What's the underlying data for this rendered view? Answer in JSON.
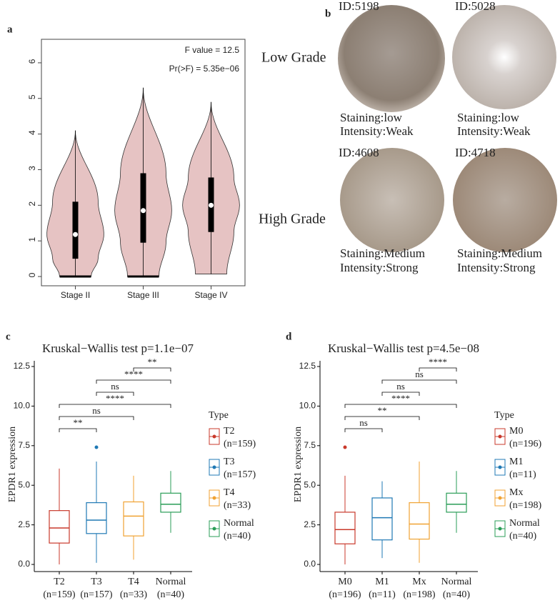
{
  "panel_labels": [
    "a",
    "b",
    "c",
    "d"
  ],
  "tissue": {
    "row_labels": [
      "Low Grade",
      "High Grade"
    ],
    "samples": [
      {
        "id": "ID:5198",
        "staining": "Staining:low",
        "intensity": "Intensity:Weak"
      },
      {
        "id": "ID:5028",
        "staining": "Staining:low",
        "intensity": "Intensity:Weak"
      },
      {
        "id": "ID:4608",
        "staining": "Staining:Medium",
        "intensity": "Intensity:Strong"
      },
      {
        "id": "ID:4718",
        "staining": "Staining:Medium",
        "intensity": "Intensity:Strong"
      }
    ]
  },
  "chart_data": [
    {
      "type": "violin",
      "categories": [
        "Stage II",
        "Stage III",
        "Stage IV"
      ],
      "stats": {
        "min": [
          0,
          0,
          0.07
        ],
        "q1": [
          0.5,
          0.95,
          1.25
        ],
        "median": [
          1.18,
          1.85,
          2.0
        ],
        "q3": [
          2.1,
          2.9,
          2.78
        ],
        "max": [
          4.1,
          5.3,
          4.9
        ]
      },
      "color": "#e6c3c3",
      "annotations": [
        "F value = 12.5",
        "Pr(>F) = 5.35e−06"
      ],
      "ylim": [
        -0.26,
        6.66
      ],
      "yticks": [
        0,
        1,
        2,
        3,
        4,
        5,
        6
      ]
    },
    {
      "type": "box",
      "title": "Kruskal−Wallis test p=1.1e−07",
      "y_label": "EPDR1 expression",
      "legend_title": "Type",
      "categories": [
        "T2",
        "T3",
        "T4",
        "Normal"
      ],
      "n_labels": [
        "(n=159)",
        "(n=157)",
        "(n=33)",
        "(n=40)"
      ],
      "colors": [
        "#c9392b",
        "#1f78b4",
        "#f0a232",
        "#2a9d57"
      ],
      "stats": {
        "min": [
          0,
          0.1,
          0.3,
          2.0
        ],
        "q1": [
          1.35,
          1.95,
          1.8,
          3.3
        ],
        "median": [
          2.3,
          2.8,
          3.05,
          3.8
        ],
        "q3": [
          3.4,
          3.9,
          3.95,
          4.5
        ],
        "max": [
          6.05,
          6.5,
          5.6,
          5.9
        ]
      },
      "outliers": [
        {
          "category": "T3",
          "value": 7.4
        }
      ],
      "comparisons": [
        {
          "from": "T2",
          "to": "T3",
          "label": "**"
        },
        {
          "from": "T2",
          "to": "T4",
          "label": "ns"
        },
        {
          "from": "T2",
          "to": "Normal",
          "label": "****"
        },
        {
          "from": "T3",
          "to": "T4",
          "label": "ns"
        },
        {
          "from": "T3",
          "to": "Normal",
          "label": "****"
        },
        {
          "from": "T4",
          "to": "Normal",
          "label": "**"
        }
      ],
      "ylim": [
        -0.45,
        12.86
      ],
      "yticks": [
        {
          "value": 0,
          "label": "0.0"
        },
        2.5,
        {
          "value": 5,
          "label": "5.0"
        },
        7.5,
        {
          "value": 10,
          "label": "10.0"
        },
        12.5
      ]
    },
    {
      "type": "box",
      "title": "Kruskal−Wallis test p=4.5e−08",
      "y_label": "EPDR1 expression",
      "legend_title": "Type",
      "categories": [
        "M0",
        "M1",
        "Mx",
        "Normal"
      ],
      "n_labels": [
        "(n=196)",
        "(n=11)",
        "(n=198)",
        "(n=40)"
      ],
      "colors": [
        "#c9392b",
        "#1f78b4",
        "#f0a232",
        "#2a9d57"
      ],
      "stats": {
        "min": [
          0,
          0.4,
          0.1,
          2.0
        ],
        "q1": [
          1.3,
          1.55,
          1.6,
          3.3
        ],
        "median": [
          2.2,
          2.95,
          2.55,
          3.8
        ],
        "q3": [
          3.3,
          4.2,
          3.9,
          4.5
        ],
        "max": [
          5.6,
          5.25,
          6.5,
          5.9
        ]
      },
      "outliers": [
        {
          "category": "M0",
          "value": 7.4
        }
      ],
      "comparisons": [
        {
          "from": "M0",
          "to": "M1",
          "label": "ns"
        },
        {
          "from": "M0",
          "to": "Mx",
          "label": "**"
        },
        {
          "from": "M0",
          "to": "Normal",
          "label": "****"
        },
        {
          "from": "M1",
          "to": "Mx",
          "label": "ns"
        },
        {
          "from": "M1",
          "to": "Normal",
          "label": "ns"
        },
        {
          "from": "Mx",
          "to": "Normal",
          "label": "****"
        }
      ],
      "ylim": [
        -0.45,
        12.86
      ],
      "yticks": [
        {
          "value": 0,
          "label": "0.0"
        },
        2.5,
        {
          "value": 5,
          "label": "5.0"
        },
        7.5,
        {
          "value": 10,
          "label": "10.0"
        },
        12.5
      ]
    }
  ]
}
